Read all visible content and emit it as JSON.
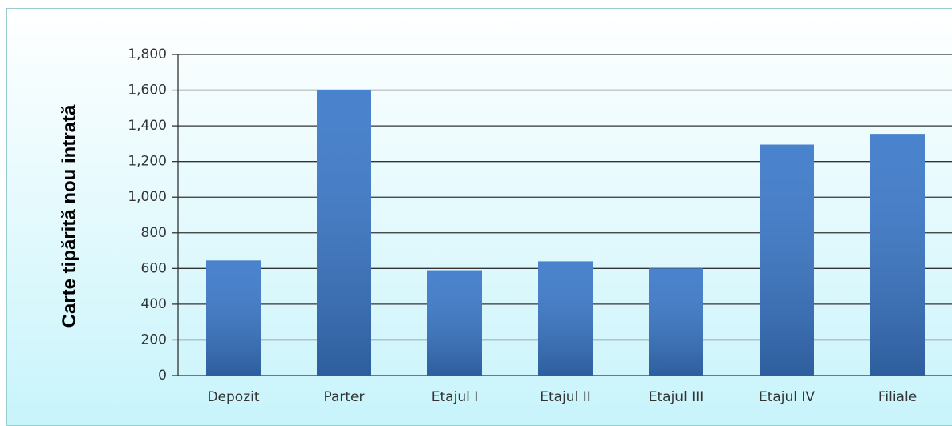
{
  "chart_data": {
    "type": "bar",
    "ylabel": "Carte tipărită nou intrată",
    "categories": [
      "Depozit",
      "Parter",
      "Etajul I",
      "Etajul II",
      "Etajul III",
      "Etajul IV",
      "Filiale"
    ],
    "values": [
      645,
      1600,
      590,
      640,
      600,
      1295,
      1355
    ],
    "color": "#3a78c9",
    "ylim": [
      0,
      1800
    ],
    "yticks": [
      0,
      200,
      400,
      600,
      800,
      {
        "value": 1000,
        "label": "1,000"
      },
      {
        "value": 1200,
        "label": "1,200"
      },
      {
        "value": 1400,
        "label": "1,400"
      },
      {
        "value": 1600,
        "label": "1,600"
      },
      {
        "value": 1800,
        "label": "1,800"
      }
    ],
    "grid": true
  }
}
